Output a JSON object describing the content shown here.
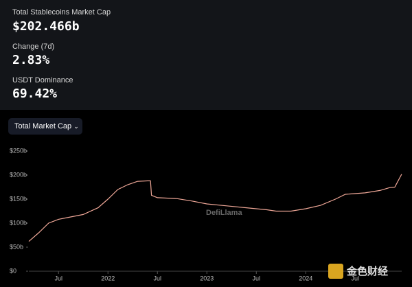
{
  "stats": [
    {
      "label": "Total Stablecoins Market Cap",
      "value": "$202.466b"
    },
    {
      "label": "Change (7d)",
      "value": "2.83%"
    },
    {
      "label": "USDT Dominance",
      "value": "69.42%"
    }
  ],
  "dropdown": "Total Market Cap",
  "watermark": "DefiLlama",
  "corner_logo": "金色财经",
  "chart_data": {
    "type": "line",
    "color": "#f0a898",
    "x": [
      2021.2,
      2021.3,
      2021.4,
      2021.5,
      2021.6,
      2021.75,
      2021.9,
      2022.0,
      2022.1,
      2022.2,
      2022.3,
      2022.4,
      2022.43,
      2022.44,
      2022.5,
      2022.7,
      2022.85,
      2023.0,
      2023.2,
      2023.4,
      2023.6,
      2023.7,
      2023.85,
      2024.0,
      2024.15,
      2024.3,
      2024.4,
      2024.6,
      2024.75,
      2024.85,
      2024.9,
      2024.97
    ],
    "values": [
      62,
      80,
      100,
      108,
      112,
      118,
      132,
      150,
      170,
      180,
      187,
      188,
      188,
      158,
      153,
      151,
      146,
      140,
      136,
      132,
      128,
      125,
      125,
      130,
      137,
      150,
      160,
      163,
      168,
      174,
      175,
      202
    ],
    "xlim": [
      2021.2,
      2024.97
    ],
    "xticks": [
      {
        "value": 2021.5,
        "label": "Jul"
      },
      2022,
      {
        "value": 2022.5,
        "label": "Jul"
      },
      2023,
      {
        "value": 2023.5,
        "label": "Jul"
      },
      2024,
      {
        "value": 2024.5,
        "label": "Jul"
      }
    ],
    "ylim": [
      0,
      250
    ],
    "yticks": [
      {
        "value": 0,
        "label": "$0"
      },
      {
        "value": 50,
        "label": "$50b"
      },
      {
        "value": 100,
        "label": "$100b"
      },
      {
        "value": 150,
        "label": "$150b"
      },
      {
        "value": 200,
        "label": "$200b"
      },
      {
        "value": 250,
        "label": "$250b"
      }
    ]
  }
}
